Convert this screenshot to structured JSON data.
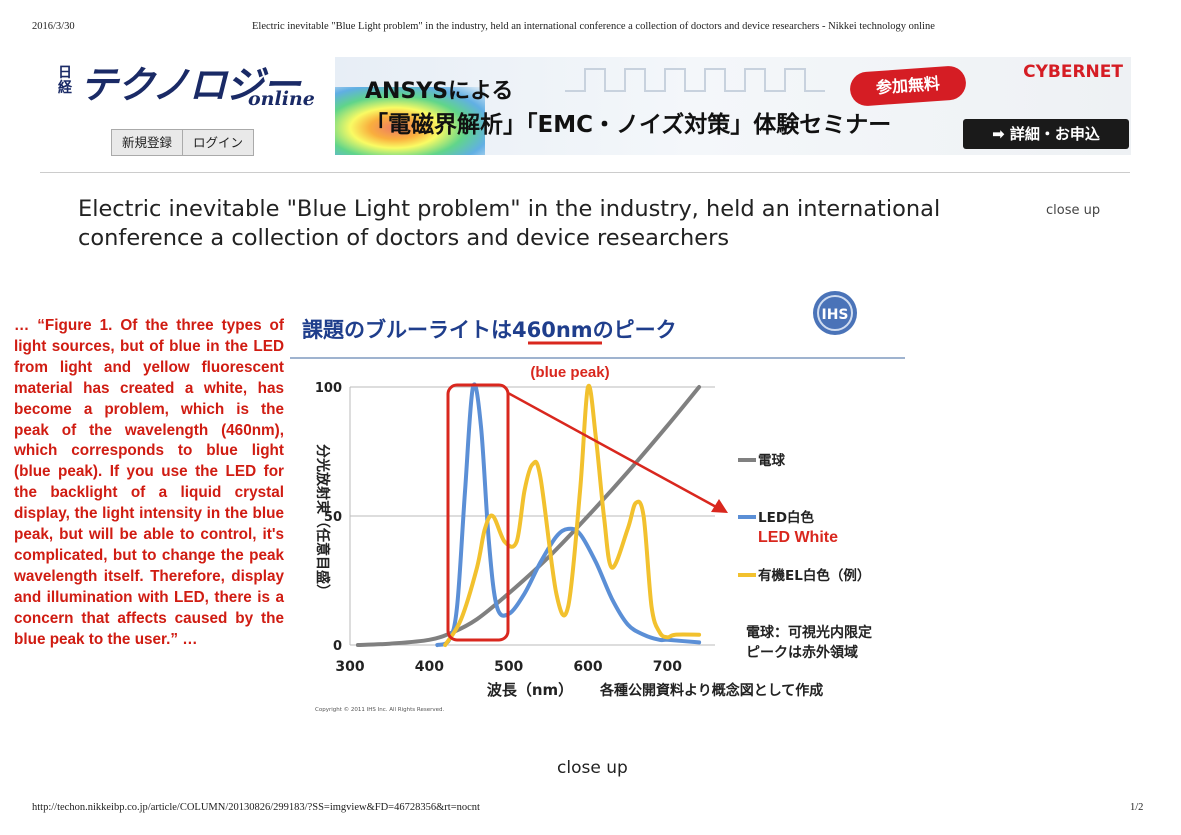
{
  "print_header": {
    "date": "2016/3/30",
    "title": "Electric inevitable \"Blue Light problem\" in the industry, held an international conference a collection of doctors and device researchers - Nikkei technology online"
  },
  "site": {
    "logo_kanji": "日経",
    "logo_main": "テクノロジー",
    "logo_sub": "online",
    "register_label": "新規登録",
    "login_label": "ログイン"
  },
  "banner": {
    "line1": "ANSYSによる",
    "line2": "「電磁界解析」「EMC・ノイズ対策」体験セミナー",
    "badge": "参加無料",
    "brand": "CYBERNET",
    "cta": "➡ 詳細・お申込"
  },
  "article": {
    "headline": "Electric inevitable \"Blue Light problem\" in the industry, held an international conference a collection of doctors and device researchers",
    "close_up_top": "close up",
    "close_up_bottom": "close up",
    "caption": "… “Figure 1. Of the three types of light sources, but of blue in the LED from light and yellow fluorescent material has created a white, has become a problem, which is the peak of the wavelength (460nm), which corresponds to blue light (blue peak). If you use the LED for the backlight of a liquid crystal display, the light intensity in the blue peak, but will be able to control, it's complicated, but to change the peak wavelength itself. Therefore, display and illumination with LED, there is a concern that affects caused by the blue peak to the user.” …"
  },
  "figure": {
    "title_prefix": "課題のブルーライトは",
    "title_highlight": "460nm",
    "title_suffix": "のピーク",
    "logo_text": "IHS",
    "annotation_peak": "(blue peak)",
    "annotation_led": "LED White",
    "note_line1": "電球：可視光内限定",
    "note_line2": "ピークは赤外領域",
    "source_note": "各種公開資料より概念図として作成",
    "copyright": "Copyright © 2011 IHS Inc. All Rights Reserved.",
    "colors": {
      "bulb": "#808080",
      "led": "#5b8fd6",
      "oled": "#f2c12e",
      "annotation": "#d9271e",
      "title": "#1f3e8c"
    }
  },
  "chart_data": {
    "type": "line",
    "xlabel": "波長（nm）",
    "ylabel": "分光放射束（任意目盛）",
    "xlim": [
      300,
      760
    ],
    "ylim": [
      0,
      100
    ],
    "x_ticks": [
      300,
      400,
      500,
      600,
      700
    ],
    "y_ticks": [
      0,
      50,
      100
    ],
    "grid": "horizontal",
    "legend_position": "right",
    "series": [
      {
        "name": "電球",
        "x": [
          310,
          350,
          400,
          430,
          460,
          500,
          550,
          600,
          650,
          700,
          740
        ],
        "values": [
          0,
          0.5,
          2,
          5,
          10,
          20,
          34,
          50,
          67,
          85,
          100
        ]
      },
      {
        "name": "LED白色",
        "x": [
          410,
          425,
          435,
          445,
          455,
          465,
          475,
          485,
          500,
          520,
          540,
          560,
          575,
          590,
          610,
          630,
          650,
          670,
          690,
          700,
          740
        ],
        "values": [
          0,
          2,
          15,
          60,
          100,
          85,
          40,
          15,
          12,
          20,
          32,
          42,
          45,
          43,
          32,
          18,
          8,
          4,
          2,
          2,
          1
        ]
      },
      {
        "name": "有機EL白色（例）",
        "x": [
          420,
          440,
          460,
          470,
          480,
          495,
          510,
          520,
          530,
          540,
          560,
          575,
          590,
          600,
          610,
          620,
          630,
          650,
          660,
          670,
          680,
          690,
          700,
          710,
          740
        ],
        "values": [
          0,
          10,
          30,
          45,
          50,
          40,
          40,
          60,
          70,
          65,
          20,
          15,
          60,
          100,
          80,
          50,
          30,
          45,
          55,
          50,
          15,
          5,
          3,
          4,
          4
        ]
      }
    ]
  }
}
